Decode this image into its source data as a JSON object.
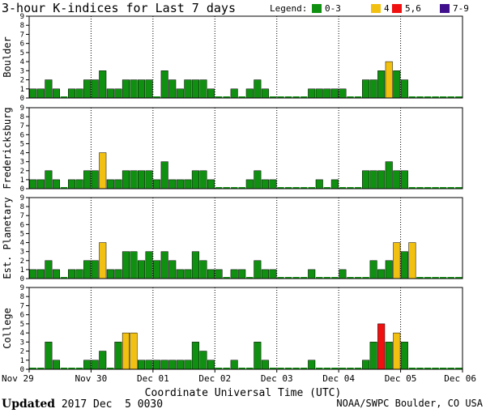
{
  "chart_data": {
    "type": "bar",
    "title": "3-hour K-indices for Last 7 days",
    "legend": {
      "label": "Legend:",
      "entries": [
        {
          "name": "0-3",
          "color": "#109010"
        },
        {
          "name": "4",
          "color": "#f2c010"
        },
        {
          "name": "5,6",
          "color": "#f01010"
        },
        {
          "name": "7-9",
          "color": "#40108c"
        }
      ]
    },
    "xlabel": "Coordinate Universal Time (UTC)",
    "x_ticks": [
      "Nov 29",
      "Nov 30",
      "Dec 01",
      "Dec 02",
      "Dec 03",
      "Dec 04",
      "Dec 05",
      "Dec 06"
    ],
    "ylim": [
      0,
      9
    ],
    "y_ticks": [
      "0",
      "1",
      "2",
      "3",
      "4",
      "5",
      "6",
      "7",
      "8",
      "9"
    ],
    "panels": [
      {
        "name": "Boulder",
        "values": [
          1,
          1,
          2,
          1,
          0,
          1,
          1,
          2,
          2,
          3,
          1,
          1,
          2,
          2,
          2,
          2,
          0,
          3,
          2,
          1,
          2,
          2,
          2,
          1,
          0,
          0,
          1,
          0,
          1,
          2,
          1,
          0,
          0,
          0,
          0,
          0,
          1,
          1,
          1,
          1,
          1,
          0,
          0,
          2,
          2,
          3,
          4,
          3,
          2,
          0,
          0,
          0,
          0,
          0,
          0,
          0
        ]
      },
      {
        "name": "Fredericksburg",
        "values": [
          1,
          1,
          2,
          1,
          0,
          1,
          1,
          2,
          2,
          4,
          1,
          1,
          2,
          2,
          2,
          2,
          1,
          3,
          1,
          1,
          1,
          2,
          2,
          1,
          0,
          0,
          0,
          0,
          1,
          2,
          1,
          1,
          0,
          0,
          0,
          0,
          0,
          1,
          0,
          1,
          0,
          0,
          0,
          2,
          2,
          2,
          3,
          2,
          2,
          0,
          0,
          0,
          0,
          0,
          0,
          0
        ]
      },
      {
        "name": "Est. Planetary",
        "values": [
          1,
          1,
          2,
          1,
          0,
          1,
          1,
          2,
          2,
          4,
          1,
          1,
          3,
          3,
          2,
          3,
          2,
          3,
          2,
          1,
          1,
          3,
          2,
          1,
          1,
          0,
          1,
          1,
          0,
          2,
          1,
          1,
          0,
          0,
          0,
          0,
          1,
          0,
          0,
          0,
          1,
          0,
          0,
          0,
          2,
          1,
          2,
          4,
          3,
          4,
          0,
          0,
          0,
          0,
          0,
          0
        ]
      },
      {
        "name": "College",
        "values": [
          0,
          0,
          3,
          1,
          0,
          0,
          0,
          1,
          1,
          2,
          0,
          3,
          4,
          4,
          1,
          1,
          1,
          1,
          1,
          1,
          1,
          3,
          2,
          1,
          0,
          0,
          1,
          0,
          0,
          3,
          1,
          0,
          0,
          0,
          0,
          0,
          1,
          0,
          0,
          0,
          0,
          0,
          0,
          1,
          3,
          5,
          3,
          4,
          3,
          0,
          0,
          0,
          0,
          0,
          0,
          0
        ]
      }
    ]
  },
  "footer": {
    "updated_label": "Updated",
    "updated_value": "2017 Dec  5 0030",
    "source": "NOAA/SWPC Boulder, CO USA"
  }
}
